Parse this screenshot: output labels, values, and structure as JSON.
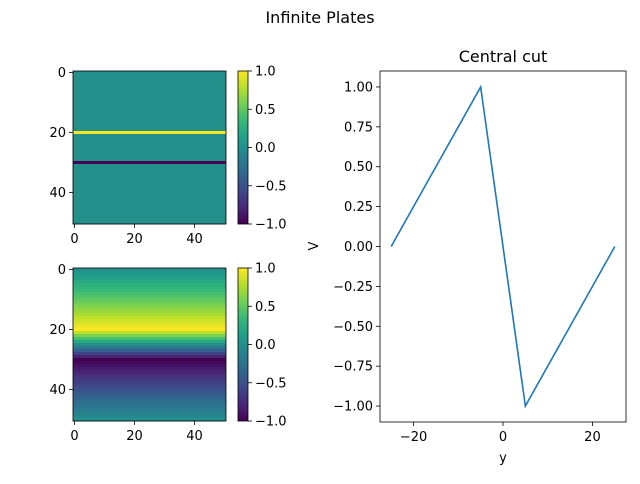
{
  "figure": {
    "title": "Infinite Plates"
  },
  "colormap": [
    "#440154",
    "#482878",
    "#3e4989",
    "#31688e",
    "#26828e",
    "#1f9e89",
    "#35b779",
    "#6ece58",
    "#b5de2b",
    "#fde725"
  ],
  "chart_data": [
    {
      "type": "heatmap",
      "title": "",
      "grid_size": [
        51,
        51
      ],
      "description_rows": [
        {
          "row": 20,
          "value": 1.0
        },
        {
          "row": 30,
          "value": -1.0
        }
      ],
      "background_value": 0.0,
      "x_ticks": [
        0,
        20,
        40
      ],
      "y_ticks": [
        0,
        20,
        40
      ],
      "colorbar": {
        "range": [
          -1.0,
          1.0
        ],
        "ticks": [
          1.0,
          0.5,
          0.0,
          -0.5,
          -1.0
        ],
        "tick_labels": [
          "1.0",
          "0.5",
          "0.0",
          "−0.5",
          "−1.0"
        ]
      }
    },
    {
      "type": "heatmap",
      "title": "",
      "grid_size": [
        51,
        51
      ],
      "profile_x": [
        0,
        20,
        30,
        50
      ],
      "profile_v": [
        0.0,
        1.0,
        -1.0,
        0.0
      ],
      "x_ticks": [
        0,
        20,
        40
      ],
      "y_ticks": [
        0,
        20,
        40
      ],
      "colorbar": {
        "range": [
          -1.0,
          1.0
        ],
        "ticks": [
          1.0,
          0.5,
          0.0,
          -0.5,
          -1.0
        ],
        "tick_labels": [
          "1.0",
          "0.5",
          "0.0",
          "−0.5",
          "−1.0"
        ]
      }
    },
    {
      "type": "line",
      "title": "Central cut",
      "xlabel": "y",
      "ylabel": "V",
      "x": [
        -25,
        -5,
        5,
        25
      ],
      "y": [
        0.0,
        1.0,
        -1.0,
        0.0
      ],
      "xlim": [
        -27.5,
        27.5
      ],
      "ylim": [
        -1.1,
        1.1
      ],
      "x_ticks": [
        -20,
        0,
        20
      ],
      "x_tick_labels": [
        "−20",
        "0",
        "20"
      ],
      "y_ticks": [
        1.0,
        0.75,
        0.5,
        0.25,
        0.0,
        -0.25,
        -0.5,
        -0.75,
        -1.0
      ],
      "y_tick_labels": [
        "1.00",
        "0.75",
        "0.50",
        "0.25",
        "0.00",
        "−0.25",
        "−0.50",
        "−0.75",
        "−1.00"
      ],
      "color": "#1f77b4"
    }
  ]
}
